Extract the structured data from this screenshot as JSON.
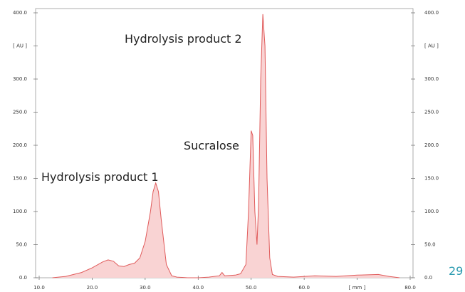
{
  "chart_data": {
    "type": "area",
    "x": [
      12.5,
      15,
      18,
      20,
      22,
      23,
      24,
      25,
      26,
      27,
      28,
      29,
      30,
      31,
      31.5,
      32,
      32.5,
      33,
      34,
      35,
      36,
      38,
      40,
      42,
      44,
      44.5,
      45,
      47,
      48,
      49,
      49.5,
      50,
      50.3,
      50.7,
      51.1,
      51.4,
      51.8,
      52.2,
      52.6,
      53,
      53.5,
      54,
      55,
      58,
      62,
      66,
      70,
      74,
      76,
      78
    ],
    "values": [
      0,
      2,
      8,
      15,
      24,
      27,
      25,
      18,
      17,
      20,
      22,
      30,
      55,
      100,
      130,
      143,
      130,
      90,
      20,
      3,
      1,
      0,
      0,
      1,
      3,
      8,
      3,
      4,
      6,
      20,
      100,
      222,
      215,
      100,
      50,
      110,
      300,
      398,
      350,
      150,
      30,
      5,
      2,
      1,
      3,
      2,
      4,
      5,
      2,
      0
    ],
    "color": "#e05a5a",
    "fill": "#f9d3d3",
    "xlim": [
      10,
      80
    ],
    "xticks": [
      {
        "value": 10,
        "label": "10.0"
      },
      {
        "value": 20,
        "label": "20.0"
      },
      {
        "value": 30,
        "label": "30.0"
      },
      {
        "value": 40,
        "label": "40.0"
      },
      {
        "value": 50,
        "label": "50.0"
      },
      {
        "value": 60,
        "label": "60.0"
      },
      {
        "value": 70,
        "label": "[ mm ]"
      },
      {
        "value": 80,
        "label": "80.0"
      }
    ],
    "ylim": [
      0,
      400
    ],
    "yticks": [
      {
        "value": 0,
        "label": "0.0"
      },
      {
        "value": 50,
        "label": "50.0"
      },
      {
        "value": 100,
        "label": "100.0"
      },
      {
        "value": 150,
        "label": "150.0"
      },
      {
        "value": 200,
        "label": "200.0"
      },
      {
        "value": 250,
        "label": "250.0"
      },
      {
        "value": 300,
        "label": "300.0"
      },
      {
        "value": 350,
        "label": "[ AU ]"
      },
      {
        "value": 400,
        "label": "400.0"
      }
    ],
    "annotations": [
      "Hydrolysis product 2",
      "Sucralose",
      "Hydrolysis product 1"
    ]
  },
  "page_number": "29"
}
